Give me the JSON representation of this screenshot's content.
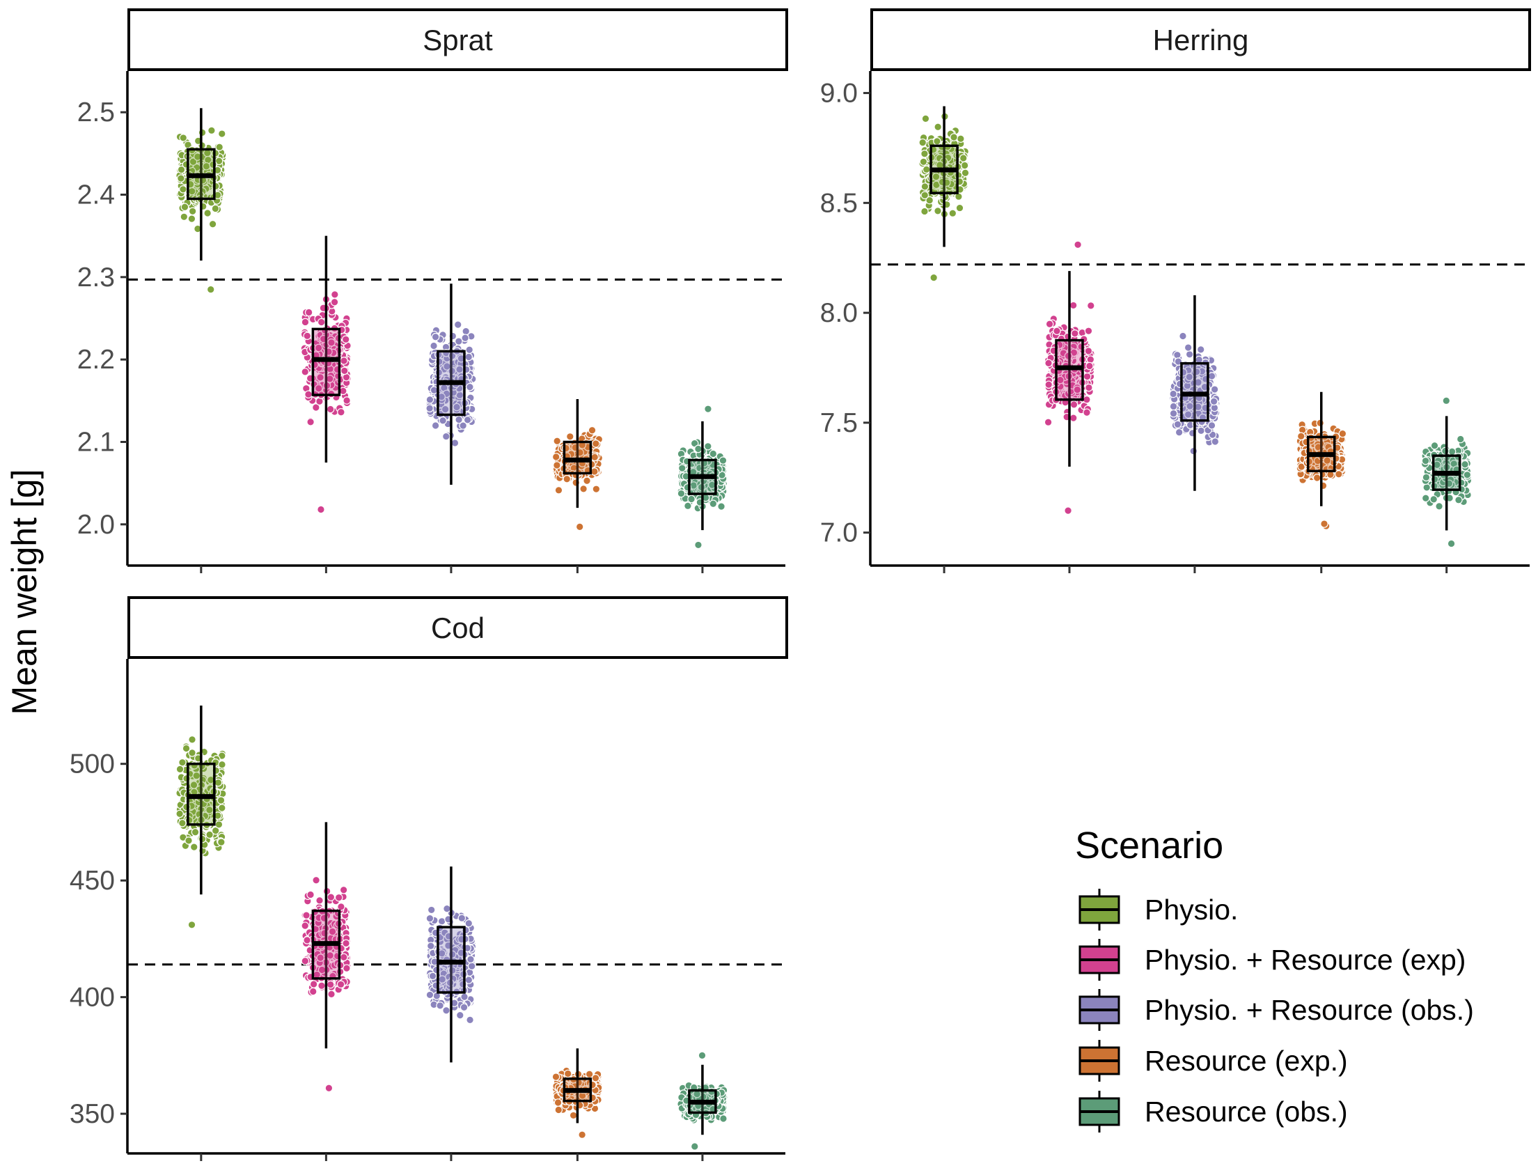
{
  "chart_data": {
    "type": "box",
    "ylabel": "Mean weight [g]",
    "legend": {
      "title": "Scenario",
      "position": "bottom-right",
      "items": [
        "Physio.",
        "Physio. + Resource (exp)",
        "Physio. + Resource (obs.)",
        "Resource (exp.)",
        "Resource (obs.)"
      ]
    },
    "colors": [
      "#7fa53d",
      "#d2418f",
      "#8b84bd",
      "#cd7333",
      "#5c9c78"
    ],
    "grid": false,
    "panels": [
      {
        "name": "Sprat",
        "ylim": [
          1.95,
          2.55
        ],
        "yticks": [
          2.0,
          2.1,
          2.2,
          2.3,
          2.4,
          2.5
        ],
        "ytick_labels": [
          "2.0",
          "2.1",
          "2.2",
          "2.3",
          "2.4",
          "2.5"
        ],
        "reference_line": 2.297,
        "boxes": [
          {
            "scenario": "Physio.",
            "min": 2.32,
            "q1": 2.395,
            "median": 2.423,
            "q3": 2.455,
            "max": 2.505,
            "outliers": [
              2.285
            ]
          },
          {
            "scenario": "Physio. + Resource (exp)",
            "min": 2.075,
            "q1": 2.157,
            "median": 2.2,
            "q3": 2.237,
            "max": 2.35,
            "outliers": [
              2.018
            ]
          },
          {
            "scenario": "Physio. + Resource (obs.)",
            "min": 2.048,
            "q1": 2.133,
            "median": 2.172,
            "q3": 2.21,
            "max": 2.292,
            "outliers": []
          },
          {
            "scenario": "Resource (exp.)",
            "min": 2.02,
            "q1": 2.062,
            "median": 2.078,
            "q3": 2.1,
            "max": 2.152,
            "outliers": [
              1.997
            ]
          },
          {
            "scenario": "Resource (obs.)",
            "min": 1.993,
            "q1": 2.037,
            "median": 2.058,
            "q3": 2.078,
            "max": 2.125,
            "outliers": [
              1.975,
              2.14
            ]
          }
        ]
      },
      {
        "name": "Herring",
        "ylim": [
          6.85,
          9.1
        ],
        "yticks": [
          7.0,
          7.5,
          8.0,
          8.5,
          9.0
        ],
        "ytick_labels": [
          "7.0",
          "7.5",
          "8.0",
          "8.5",
          "9.0"
        ],
        "reference_line": 8.22,
        "boxes": [
          {
            "scenario": "Physio.",
            "min": 8.3,
            "q1": 8.545,
            "median": 8.65,
            "q3": 8.76,
            "max": 8.94,
            "outliers": [
              8.16
            ]
          },
          {
            "scenario": "Physio. + Resource (exp)",
            "min": 7.3,
            "q1": 7.605,
            "median": 7.75,
            "q3": 7.875,
            "max": 8.19,
            "outliers": [
              7.1,
              8.31
            ]
          },
          {
            "scenario": "Physio. + Resource (obs.)",
            "min": 7.19,
            "q1": 7.51,
            "median": 7.63,
            "q3": 7.77,
            "max": 8.08,
            "outliers": []
          },
          {
            "scenario": "Resource (exp.)",
            "min": 7.12,
            "q1": 7.28,
            "median": 7.355,
            "q3": 7.435,
            "max": 7.64,
            "outliers": [
              7.03,
              7.04
            ]
          },
          {
            "scenario": "Resource (obs.)",
            "min": 7.01,
            "q1": 7.195,
            "median": 7.27,
            "q3": 7.35,
            "max": 7.53,
            "outliers": [
              6.95,
              7.6
            ]
          }
        ]
      },
      {
        "name": "Cod",
        "ylim": [
          333,
          545
        ],
        "yticks": [
          350,
          400,
          450,
          500
        ],
        "ytick_labels": [
          "350",
          "400",
          "450",
          "500"
        ],
        "reference_line": 414,
        "boxes": [
          {
            "scenario": "Physio.",
            "min": 444,
            "q1": 474,
            "median": 486,
            "q3": 500,
            "max": 525,
            "outliers": [
              431
            ]
          },
          {
            "scenario": "Physio. + Resource (exp)",
            "min": 378,
            "q1": 408,
            "median": 423,
            "q3": 437,
            "max": 475,
            "outliers": [
              361
            ]
          },
          {
            "scenario": "Physio. + Resource (obs.)",
            "min": 372,
            "q1": 402,
            "median": 415,
            "q3": 430,
            "max": 456,
            "outliers": []
          },
          {
            "scenario": "Resource (exp.)",
            "min": 346,
            "q1": 355.5,
            "median": 360,
            "q3": 365,
            "max": 378,
            "outliers": [
              341
            ]
          },
          {
            "scenario": "Resource (obs.)",
            "min": 341,
            "q1": 350.5,
            "median": 355,
            "q3": 360,
            "max": 371,
            "outliers": [
              336,
              375
            ]
          }
        ]
      }
    ]
  }
}
